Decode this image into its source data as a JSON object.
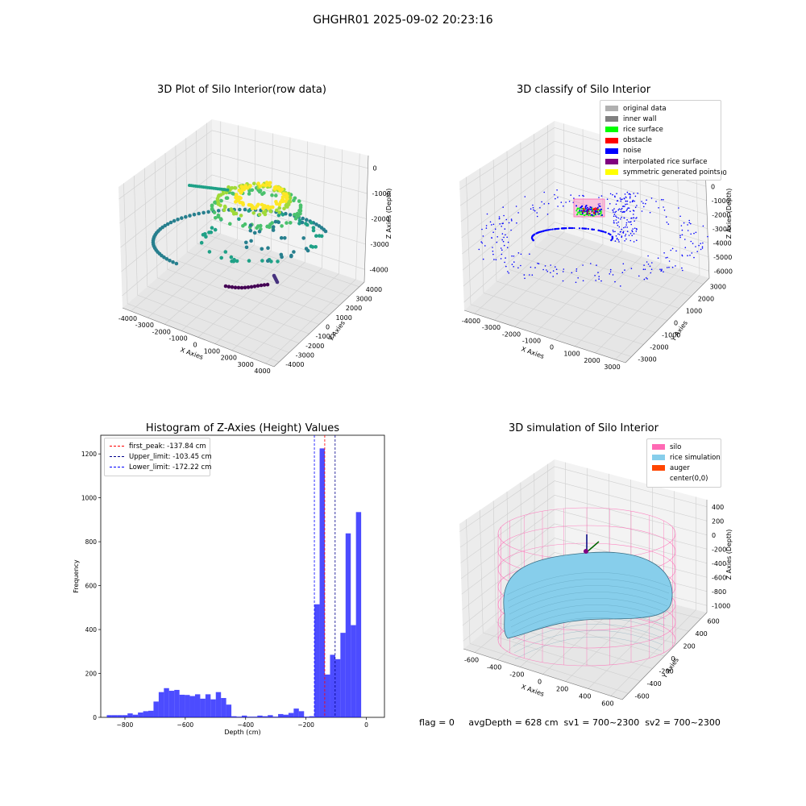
{
  "figure": {
    "suptitle": "GHGHR01 2025-09-02 20:23:16",
    "footer": "flag = 0     avgDepth = 628 cm  sv1 = 700~2300  sv2 = 700~2300"
  },
  "chart_data": [
    {
      "type": "scatter",
      "projection": "3d",
      "title": "3D Plot of Silo Interior(row data)",
      "xlabel": "X Axies",
      "ylabel": "Y Axies",
      "zlabel": "Z Axies (Depth)",
      "x_ticks": [
        "-4000",
        "-3000",
        "-2000",
        "-1000",
        "0",
        "1000",
        "2000",
        "3000",
        "4000"
      ],
      "y_ticks": [
        "-4000",
        "-3000",
        "-2000",
        "-1000",
        "0",
        "1000",
        "2000",
        "3000",
        "4000"
      ],
      "z_ticks": [
        "0",
        "-1000",
        "-2000",
        "-3000",
        "-4000"
      ],
      "colormap": "viridis",
      "grid": true
    },
    {
      "type": "scatter",
      "projection": "3d",
      "title": "3D classify of Silo Interior",
      "xlabel": "X Axies",
      "ylabel": "Y Axies",
      "zlabel": "Z Axies (Depth)",
      "x_ticks": [
        "-4000",
        "-3000",
        "-2000",
        "-1000",
        "0",
        "1000",
        "2000",
        "3000"
      ],
      "y_ticks": [
        "-3000",
        "-2000",
        "-1000",
        "0",
        "1000",
        "2000",
        "3000"
      ],
      "z_ticks": [
        "1000",
        "0",
        "-1000",
        "-2000",
        "-3000",
        "-4000",
        "-5000",
        "-6000"
      ],
      "legend": [
        {
          "label": "original data",
          "color": "#b0b0b0"
        },
        {
          "label": "inner wall",
          "color": "#808080"
        },
        {
          "label": "rice surface",
          "color": "#00ff00"
        },
        {
          "label": "obstacle",
          "color": "#ff0000"
        },
        {
          "label": "noise",
          "color": "#0000ff"
        },
        {
          "label": "interpolated rice surface",
          "color": "#800080"
        },
        {
          "label": "symmetric generated points",
          "color": "#ffff00"
        }
      ],
      "legend_position": "top-right",
      "grid": true
    },
    {
      "type": "bar",
      "title": "Histogram of Z-Axies (Height) Values",
      "xlabel": "Depth (cm)",
      "ylabel": "Frequency",
      "xlim": [
        -880,
        60
      ],
      "ylim": [
        0,
        1285
      ],
      "x_ticks": [
        -800,
        -600,
        -400,
        -200,
        0
      ],
      "y_ticks": [
        0,
        200,
        400,
        600,
        800,
        1000,
        1200
      ],
      "bin_start": -860,
      "bin_width": 17.2,
      "values": [
        10,
        10,
        10,
        10,
        18,
        12,
        22,
        28,
        30,
        72,
        115,
        133,
        121,
        125,
        103,
        102,
        97,
        105,
        85,
        105,
        82,
        115,
        88,
        58,
        5,
        3,
        8,
        3,
        3,
        8,
        5,
        10,
        3,
        15,
        12,
        20,
        40,
        28,
        3,
        5,
        515,
        1225,
        195,
        285,
        265,
        385,
        838,
        420,
        935
      ],
      "bar_color": "#0000ff",
      "vlines": [
        {
          "label": "first_peak: -137.84 cm",
          "x": -137.84,
          "color": "#ff0000"
        },
        {
          "label": "Upper_limit: -103.45 cm",
          "x": -103.45,
          "color": "#00008b"
        },
        {
          "label": "Lower_limit: -172.22 cm",
          "x": -172.22,
          "color": "#0000ff"
        }
      ],
      "legend_position": "top-left",
      "grid": false
    },
    {
      "type": "surface",
      "projection": "3d",
      "title": "3D simulation of Silo Interior",
      "xlabel": "X Axies",
      "ylabel": "Y Axies",
      "zlabel": "Z Axies (Depth)",
      "x_ticks": [
        "-600",
        "-400",
        "-200",
        "0",
        "200",
        "400",
        "600"
      ],
      "y_ticks": [
        "-600",
        "-400",
        "-200",
        "0",
        "200",
        "400",
        "600"
      ],
      "z_ticks": [
        "400",
        "200",
        "0",
        "-200",
        "-400",
        "-600",
        "-800",
        "-1000"
      ],
      "legend": [
        {
          "label": "silo",
          "color": "#ff69b4"
        },
        {
          "label": "rice simulation",
          "color": "#87ceeb"
        },
        {
          "label": "auger",
          "color": "#ff4500"
        },
        {
          "label": "center(0,0)",
          "color": ""
        }
      ],
      "legend_position": "top-right",
      "grid": true
    }
  ]
}
